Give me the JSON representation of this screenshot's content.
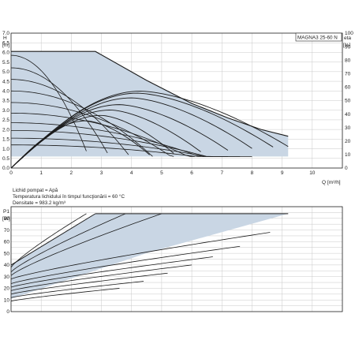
{
  "chart_data": [
    {
      "type": "line",
      "model": "MAGNA3 25-60 N",
      "ylabel": "H",
      "yunit": "[m]",
      "y2label": "eta",
      "y2unit": "[%]",
      "xlabel": "Q",
      "xunit": "[m³/h]",
      "xlim": [
        0,
        11
      ],
      "ylim": [
        0,
        7
      ],
      "y2lim": [
        0,
        100
      ],
      "xticks": [
        "0",
        "1",
        "2",
        "3",
        "4",
        "5",
        "6",
        "7",
        "8",
        "9",
        "10"
      ],
      "yticks": [
        "0.0",
        "0.5",
        "1.0",
        "1.5",
        "2.0",
        "2.5",
        "3.0",
        "3.5",
        "4.0",
        "4.5",
        "5.0",
        "5.5",
        "6.0",
        "6.5",
        "7.0"
      ],
      "y2ticks": [
        "0",
        "10",
        "20",
        "30",
        "40",
        "50",
        "60",
        "70",
        "80",
        "90",
        "100"
      ],
      "grid": true,
      "envelope": {
        "x": [
          0,
          2.8,
          4.5,
          6.0,
          7.2,
          8.3,
          9.2,
          9.2,
          0
        ],
        "y": [
          6.05,
          6.05,
          4.55,
          3.35,
          2.6,
          2.0,
          1.65,
          0.6,
          0.6
        ]
      },
      "head_curves": [
        {
          "hmax": 5.85,
          "qmax": 2.5
        },
        {
          "hmax": 5.2,
          "qmax": 3.2
        },
        {
          "hmax": 4.6,
          "qmax": 3.9
        },
        {
          "hmax": 4.0,
          "qmax": 4.7
        },
        {
          "hmax": 3.4,
          "qmax": 5.4
        },
        {
          "hmax": 2.85,
          "qmax": 6.1
        },
        {
          "hmax": 2.35,
          "qmax": 6.7
        },
        {
          "hmax": 1.95,
          "qmax": 7.2
        },
        {
          "hmax": 1.55,
          "qmax": 7.6
        },
        {
          "hmax": 1.2,
          "qmax": 8.0
        }
      ],
      "efficiency_curves": [
        {
          "qmax": 9.2,
          "peak": 57,
          "qpeak": 4.3
        },
        {
          "qmax": 8.7,
          "peak": 55.5,
          "qpeak": 4.2
        },
        {
          "qmax": 8.0,
          "peak": 52,
          "qpeak": 4.0
        },
        {
          "qmax": 7.2,
          "peak": 47,
          "qpeak": 3.6
        },
        {
          "qmax": 6.3,
          "peak": 43,
          "qpeak": 3.3
        },
        {
          "qmax": 5.4,
          "peak": 39,
          "qpeak": 3.0
        },
        {
          "qmax": 4.6,
          "peak": 35,
          "qpeak": 2.5
        }
      ]
    },
    {
      "type": "line",
      "ylabel": "P1",
      "yunit": "[W]",
      "xlim": [
        0,
        11
      ],
      "ylim": [
        0,
        90
      ],
      "yticks": [
        "0",
        "10",
        "20",
        "30",
        "40",
        "50",
        "60",
        "70",
        "80"
      ],
      "grid": true,
      "envelope": {
        "x": [
          0,
          2.8,
          9.2,
          9.2,
          6.0,
          4.6,
          0
        ],
        "y": [
          40,
          84,
          84,
          84,
          61,
          51,
          11
        ]
      },
      "power_curves": [
        {
          "y0": 38,
          "x1": 2.5,
          "y1": 84
        },
        {
          "y0": 34,
          "x1": 3.8,
          "y1": 84
        },
        {
          "y0": 31,
          "x1": 5.0,
          "y1": 84
        },
        {
          "y0": 28,
          "x1": 8.6,
          "y1": 68
        },
        {
          "y0": 24,
          "x1": 7.6,
          "y1": 56
        },
        {
          "y0": 21,
          "x1": 6.7,
          "y1": 47
        },
        {
          "y0": 18,
          "x1": 6.0,
          "y1": 40
        },
        {
          "y0": 15,
          "x1": 5.2,
          "y1": 33
        },
        {
          "y0": 12,
          "x1": 4.4,
          "y1": 26
        },
        {
          "y0": 9,
          "x1": 3.6,
          "y1": 20
        }
      ]
    }
  ],
  "conditions": [
    "Lichid pompat = Apă",
    "Temperatura lichidului în timpul funcţionării = 60 °C",
    "Densitate = 983.2 kg/m³"
  ],
  "colors": {
    "fill": "#c9d6e4",
    "curve": "#1a1a1a",
    "grid": "#c8c8c8",
    "axis": "#222222"
  }
}
